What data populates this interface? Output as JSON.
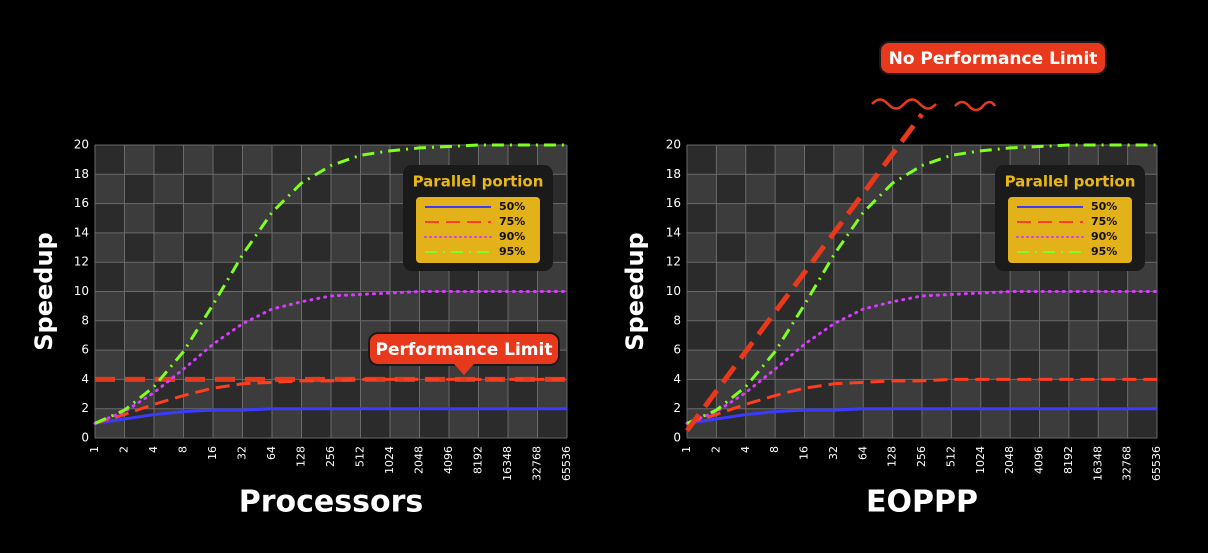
{
  "chart_data": [
    {
      "type": "line",
      "xlabel": "Processors",
      "ylabel": "Speedup",
      "legend_title": "Parallel portion",
      "annotation": "Performance Limit",
      "categories": [
        "1",
        "2",
        "4",
        "8",
        "16",
        "32",
        "64",
        "128",
        "256",
        "512",
        "1024",
        "2048",
        "4096",
        "8192",
        "16348",
        "32768",
        "65536"
      ],
      "ylim": [
        0,
        20
      ],
      "yticks": [
        0,
        2,
        4,
        6,
        8,
        10,
        12,
        14,
        16,
        18,
        20
      ],
      "grid": true,
      "hlines": [
        {
          "value": 4,
          "color": "#e8391d"
        }
      ],
      "series": [
        {
          "name": "50%",
          "color": "#3b3bff",
          "style": "solid",
          "values": [
            1.0,
            1.3,
            1.6,
            1.8,
            1.9,
            1.9,
            2.0,
            2.0,
            2.0,
            2.0,
            2.0,
            2.0,
            2.0,
            2.0,
            2.0,
            2.0,
            2.0
          ]
        },
        {
          "name": "75%",
          "color": "#ff3d1f",
          "style": "dashed",
          "values": [
            1.0,
            1.6,
            2.3,
            2.9,
            3.4,
            3.7,
            3.8,
            3.9,
            3.9,
            4.0,
            4.0,
            4.0,
            4.0,
            4.0,
            4.0,
            4.0,
            4.0
          ]
        },
        {
          "name": "90%",
          "color": "#d63cff",
          "style": "dotted",
          "values": [
            1.0,
            1.8,
            3.1,
            4.7,
            6.4,
            7.8,
            8.8,
            9.3,
            9.7,
            9.8,
            9.9,
            10,
            10,
            10,
            10,
            10,
            10
          ]
        },
        {
          "name": "95%",
          "color": "#7fff1f",
          "style": "dashdot",
          "values": [
            1.0,
            1.9,
            3.5,
            5.9,
            9.1,
            12.5,
            15.4,
            17.4,
            18.6,
            19.3,
            19.6,
            19.8,
            19.9,
            20,
            20,
            20,
            20
          ]
        }
      ]
    },
    {
      "type": "line",
      "xlabel": "EOPPP",
      "ylabel": "Speedup",
      "legend_title": "Parallel portion",
      "annotation": "No Performance Limit",
      "categories": [
        "1",
        "2",
        "4",
        "8",
        "16",
        "32",
        "64",
        "128",
        "256",
        "512",
        "1024",
        "2048",
        "4096",
        "8192",
        "16348",
        "32768",
        "65536"
      ],
      "ylim": [
        0,
        20
      ],
      "yticks": [
        0,
        2,
        4,
        6,
        8,
        10,
        12,
        14,
        16,
        18,
        20
      ],
      "grid": true,
      "series": [
        {
          "name": "50%",
          "color": "#3b3bff",
          "style": "solid",
          "values": [
            1.0,
            1.3,
            1.6,
            1.8,
            1.9,
            1.9,
            2.0,
            2.0,
            2.0,
            2.0,
            2.0,
            2.0,
            2.0,
            2.0,
            2.0,
            2.0,
            2.0
          ]
        },
        {
          "name": "75%",
          "color": "#ff3d1f",
          "style": "dashed",
          "values": [
            1.0,
            1.6,
            2.3,
            2.9,
            3.4,
            3.7,
            3.8,
            3.9,
            3.9,
            4.0,
            4.0,
            4.0,
            4.0,
            4.0,
            4.0,
            4.0,
            4.0
          ]
        },
        {
          "name": "90%",
          "color": "#d63cff",
          "style": "dotted",
          "values": [
            1.0,
            1.8,
            3.1,
            4.7,
            6.4,
            7.8,
            8.8,
            9.3,
            9.7,
            9.8,
            9.9,
            10,
            10,
            10,
            10,
            10,
            10
          ]
        },
        {
          "name": "95%",
          "color": "#7fff1f",
          "style": "dashdot",
          "values": [
            1.0,
            1.9,
            3.5,
            5.9,
            9.1,
            12.5,
            15.4,
            17.4,
            18.6,
            19.3,
            19.6,
            19.8,
            19.9,
            20,
            20,
            20,
            20
          ]
        },
        {
          "color": "#e8391d",
          "style": "bold-dashed",
          "values": [
            0.5,
            3.2,
            5.9,
            8.6,
            11.3,
            14.0,
            16.7,
            19.4,
            22.1,
            null,
            null,
            null,
            null,
            null,
            null,
            null,
            null
          ]
        }
      ]
    }
  ]
}
